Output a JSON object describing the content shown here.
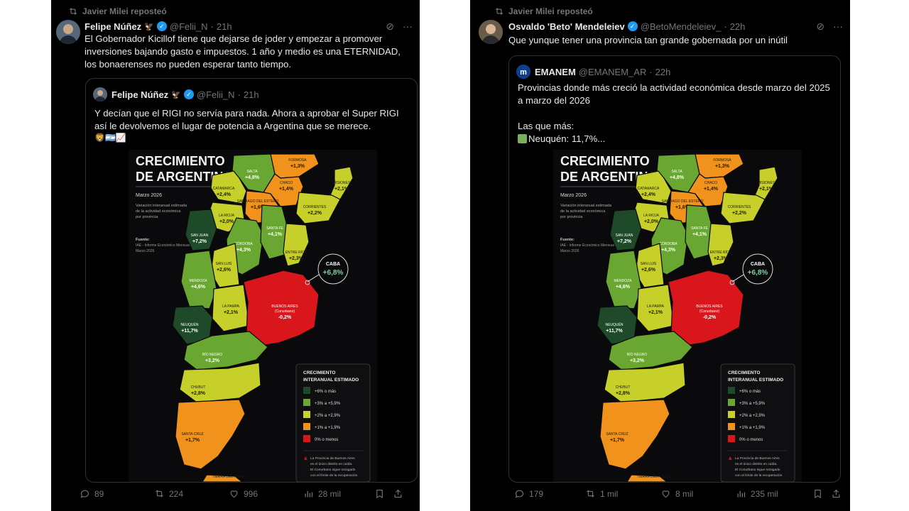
{
  "left": {
    "repost_label": "Javier Milei reposteó",
    "author": {
      "name": "Felipe Núñez",
      "badge_emoji": "🦅",
      "handle": "@Felii_N",
      "time": "21h"
    },
    "text": "El Gobernador Kicillof tiene que dejarse de joder y empezar a promover inversiones bajando gasto e impuestos. 1 año y medio es una ETERNIDAD, los bonaerenses no pueden esperar tanto tiempo.",
    "quote": {
      "author": {
        "name": "Felipe Núñez",
        "badge_emoji": "🦅",
        "handle": "@Felii_N",
        "time": "21h"
      },
      "text": "Y decían que el RIGI no servía para nada. Ahora a aprobar el Super RIGI así le devolvemos el lugar de potencia a Argentina que se merece.",
      "emojis": "🦁🇦🇷📈"
    },
    "actions": {
      "replies": "89",
      "reposts": "224",
      "likes": "996",
      "views": "28 mil"
    }
  },
  "right": {
    "repost_label": "Javier Milei reposteó",
    "author": {
      "name": "Osvaldo 'Beto' Mendeleiev",
      "handle": "@BetoMendeleiev_",
      "time": "22h"
    },
    "text": "Que yunque tener una provincia tan grande gobernada por un inútil",
    "quote": {
      "author": {
        "name": "EMANEM",
        "handle": "@EMANEM_AR",
        "time": "22h"
      },
      "text": "Provincias donde más creció la actividad económica desde marzo del 2025 a marzo del 2026",
      "text2": "Las que más:",
      "text3": "Neuquén: 11,7%..."
    },
    "actions": {
      "replies": "179",
      "reposts": "1 mil",
      "likes": "8 mil",
      "views": "235 mil"
    }
  },
  "map": {
    "title1": "CRECIMIENTO",
    "title2": "DE ARGENTINA",
    "date": "Marzo 2026",
    "subtitle": [
      "Variación interanual estimada",
      "de la actividad económica",
      "por provincia"
    ],
    "source_label": "Fuente:",
    "source": [
      "IAE - Informe Económico Mensual",
      "Marzo 2026"
    ],
    "legend_title": [
      "CRECIMIENTO",
      "INTERANUAL ESTIMADO"
    ],
    "legend": [
      {
        "label": "+6% o más",
        "color": "#1f4a2a"
      },
      {
        "label": "+3% a +5,9%",
        "color": "#6aa632"
      },
      {
        "label": "+2% a +2,9%",
        "color": "#c7cf2a"
      },
      {
        "label": "+1% a +1,9%",
        "color": "#f0921c"
      },
      {
        "label": "0% o menos",
        "color": "#d9161c"
      }
    ],
    "footnote": [
      "La Provincia de Buenos Aires",
      "es el único distrito en caída.",
      "El Conurbano sigue rezagado",
      "con el límite de la recuperación"
    ],
    "provinces": {
      "formosa": {
        "name": "FORMOSA",
        "value": "+1,3%"
      },
      "salta": {
        "name": "SALTA",
        "value": "+4,8%"
      },
      "chaco": {
        "name": "CHACO",
        "value": "+1,4%"
      },
      "catamarca": {
        "name": "CATAMARCA",
        "value": "+2,4%"
      },
      "santiago": {
        "name": "SANTIAGO DEL ESTERO",
        "value": "+1,6%"
      },
      "misiones": {
        "name": "MISIONES",
        "value": "+2,1%"
      },
      "larioja": {
        "name": "LA RIOJA",
        "value": "+2,0%"
      },
      "corrientes": {
        "name": "CORRIENTES",
        "value": "+2,2%"
      },
      "sanjuan": {
        "name": "SAN JUAN",
        "value": "+7,2%"
      },
      "santafe": {
        "name": "SANTA FE",
        "value": "+4,1%"
      },
      "cordoba": {
        "name": "CÓRDOBA",
        "value": "+4,3%"
      },
      "entrerios": {
        "name": "ENTRE RÍOS",
        "value": "+2,3%"
      },
      "sanluis": {
        "name": "SAN LUIS",
        "value": "+2,6%"
      },
      "caba": {
        "name": "CABA",
        "value": "+6,8%"
      },
      "mendoza": {
        "name": "MENDOZA",
        "value": "+4,6%"
      },
      "lapampa": {
        "name": "LA PAMPA",
        "value": "+2,1%"
      },
      "buenosaires": {
        "name": "BUENOS AIRES",
        "sub": "(Conurbano)",
        "value": "-0,2%"
      },
      "neuquen": {
        "name": "NEUQUÉN",
        "value": "+11,7%"
      },
      "rionegro": {
        "name": "RÍO NEGRO",
        "value": "+3,2%"
      },
      "chubut": {
        "name": "CHUBUT",
        "value": "+2,8%"
      },
      "santacruz": {
        "name": "SANTA CRUZ",
        "value": "+1,7%"
      },
      "tierra": {
        "name": "TIERRA DEL FUEGO",
        "value": ""
      }
    }
  }
}
